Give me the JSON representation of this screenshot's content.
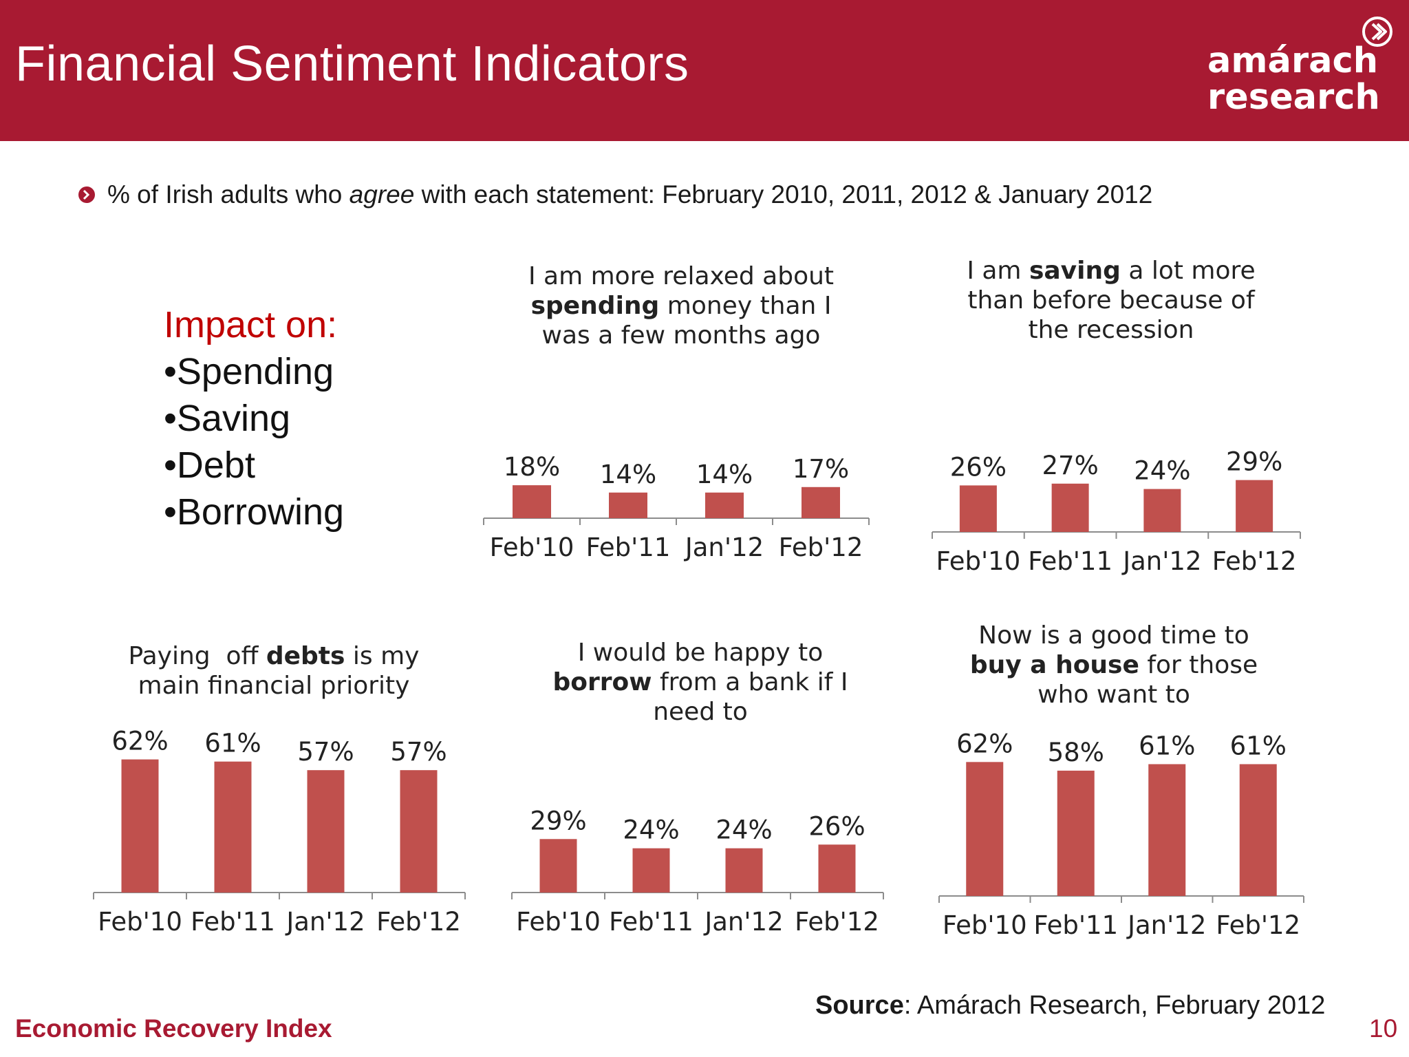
{
  "header": {
    "title": "Financial Sentiment Indicators",
    "logo_line1": "amárach",
    "logo_line2": "research",
    "logo_icon": "chevron-circle-icon",
    "background_color": "#a81a32"
  },
  "subtitle": {
    "bullet_icon": "chevron-bullet-icon",
    "text_pre": "% of Irish adults who ",
    "text_emphasis": "agree",
    "text_post": " with each statement: February 2010, 2011, 2012 & January 2012"
  },
  "impact": {
    "heading": "Impact on:",
    "items": [
      "•Spending",
      "•Saving",
      "•Debt",
      "•Borrowing"
    ]
  },
  "chart_data": [
    {
      "type": "bar",
      "title_lines": [
        [
          {
            "t": "I am more relaxed about",
            "b": false
          }
        ],
        [
          {
            "t": "spending",
            "b": true
          },
          {
            "t": " money than I",
            "b": false
          }
        ],
        [
          {
            "t": "was a few months ago",
            "b": false
          }
        ]
      ],
      "categories": [
        "Feb'10",
        "Feb'11",
        "Jan'12",
        "Feb'12"
      ],
      "values": [
        18,
        14,
        14,
        17
      ],
      "value_labels": [
        "18%",
        "14%",
        "14%",
        "17%"
      ],
      "unit": "%",
      "color": "#c0504d"
    },
    {
      "type": "bar",
      "title_lines": [
        [
          {
            "t": "I am ",
            "b": false
          },
          {
            "t": "saving",
            "b": true
          },
          {
            "t": " a lot more",
            "b": false
          }
        ],
        [
          {
            "t": "than before because of",
            "b": false
          }
        ],
        [
          {
            "t": "the recession",
            "b": false
          }
        ]
      ],
      "categories": [
        "Feb'10",
        "Feb'11",
        "Jan'12",
        "Feb'12"
      ],
      "values": [
        26,
        27,
        24,
        29
      ],
      "value_labels": [
        "26%",
        "27%",
        "24%",
        "29%"
      ],
      "unit": "%",
      "color": "#c0504d"
    },
    {
      "type": "bar",
      "title_lines": [
        [
          {
            "t": "Paying  off ",
            "b": false
          },
          {
            "t": "debts",
            "b": true
          },
          {
            "t": " is my",
            "b": false
          }
        ],
        [
          {
            "t": "main financial priority",
            "b": false
          }
        ]
      ],
      "categories": [
        "Feb'10",
        "Feb'11",
        "Jan'12",
        "Feb'12"
      ],
      "values": [
        62,
        61,
        57,
        57
      ],
      "value_labels": [
        "62%",
        "61%",
        "57%",
        "57%"
      ],
      "unit": "%",
      "color": "#c0504d"
    },
    {
      "type": "bar",
      "title_lines": [
        [
          {
            "t": "I would be happy to",
            "b": false
          }
        ],
        [
          {
            "t": "borrow",
            "b": true
          },
          {
            "t": " from a bank if I",
            "b": false
          }
        ],
        [
          {
            "t": "need to",
            "b": false
          }
        ]
      ],
      "categories": [
        "Feb'10",
        "Feb'11",
        "Jan'12",
        "Feb'12"
      ],
      "values": [
        29,
        24,
        24,
        26
      ],
      "value_labels": [
        "29%",
        "24%",
        "24%",
        "26%"
      ],
      "unit": "%",
      "color": "#c0504d"
    },
    {
      "type": "bar",
      "title_lines": [
        [
          {
            "t": "Now is a good time to",
            "b": false
          }
        ],
        [
          {
            "t": "buy a house",
            "b": true
          },
          {
            "t": " for those",
            "b": false
          }
        ],
        [
          {
            "t": "who want to",
            "b": false
          }
        ]
      ],
      "categories": [
        "Feb'10",
        "Feb'11",
        "Jan'12",
        "Feb'12"
      ],
      "values": [
        62,
        58,
        61,
        61
      ],
      "value_labels": [
        "62%",
        "58%",
        "61%",
        "61%"
      ],
      "unit": "%",
      "color": "#c0504d"
    }
  ],
  "source": {
    "label": "Source",
    "text": ": Amárach Research, February 2012"
  },
  "footer": {
    "brand": "Economic Recovery Index",
    "page_number": "10"
  }
}
